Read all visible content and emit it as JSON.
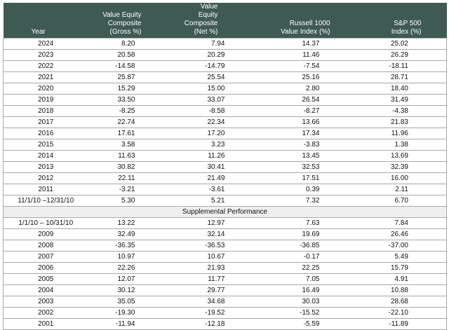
{
  "header": {
    "year": "Year",
    "gross": [
      "Value Equity Composite",
      "(Gross %)"
    ],
    "net": [
      "Value Equity Composite",
      "(Net %)"
    ],
    "russell": [
      "Russell 1000",
      "Value Index (%)"
    ],
    "sp": [
      "S&P 500",
      "Index (%)"
    ]
  },
  "rows": [
    [
      "2024",
      "8.20",
      "7.94",
      "14.37",
      "25.02"
    ],
    [
      "2023",
      "20.58",
      "20.29",
      "11.46",
      "26.29"
    ],
    [
      "2022",
      "-14.58",
      "-14.79",
      "-7.54",
      "-18.11"
    ],
    [
      "2021",
      "25.87",
      "25.54",
      "25.16",
      "28.71"
    ],
    [
      "2020",
      "15.29",
      "15.00",
      "2.80",
      "18.40"
    ],
    [
      "2019",
      "33.50",
      "33.07",
      "26.54",
      "31.49"
    ],
    [
      "2018",
      "-8.25",
      "-8.58",
      "-8.27",
      "-4.38"
    ],
    [
      "2017",
      "22.74",
      "22.34",
      "13.66",
      "21.83"
    ],
    [
      "2016",
      "17.61",
      "17.20",
      "17.34",
      "11.96"
    ],
    [
      "2015",
      "3.58",
      "3.23",
      "-3.83",
      "1.38"
    ],
    [
      "2014",
      "11.63",
      "11.26",
      "13.45",
      "13.69"
    ],
    [
      "2013",
      "30.82",
      "30.41",
      "32.53",
      "32.39"
    ],
    [
      "2012",
      "22.11",
      "21.49",
      "17.51",
      "16.00"
    ],
    [
      "2011",
      "-3.21",
      "-3.61",
      "0.39",
      "2.11"
    ],
    [
      "11/1/10 –12/31/10",
      "5.30",
      "5.21",
      "7.32",
      "6.70"
    ]
  ],
  "supplemental_label": "Supplemental Performance",
  "supplemental_rows": [
    [
      "1/1/10 – 10/31/10",
      "13.22",
      "12.97",
      "7.63",
      "7.84"
    ],
    [
      "2009",
      "32.49",
      "32.14",
      "19.69",
      "26.46"
    ],
    [
      "2008",
      "-36.35",
      "-36.53",
      "-36.85",
      "-37.00"
    ],
    [
      "2007",
      "10.97",
      "10.67",
      "-0.17",
      "5.49"
    ],
    [
      "2006",
      "22.26",
      "21.93",
      "22.25",
      "15.79"
    ],
    [
      "2005",
      "12.07",
      "11.77",
      "7.05",
      "4.91"
    ],
    [
      "2004",
      "30.12",
      "29.77",
      "16.49",
      "10.88"
    ],
    [
      "2003",
      "35.05",
      "34.68",
      "30.03",
      "28.68"
    ],
    [
      "2002",
      "-19.30",
      "-19.52",
      "-15.52",
      "-22.10"
    ],
    [
      "2001",
      "-11.94",
      "-12.18",
      "-5.59",
      "-11.89"
    ]
  ]
}
